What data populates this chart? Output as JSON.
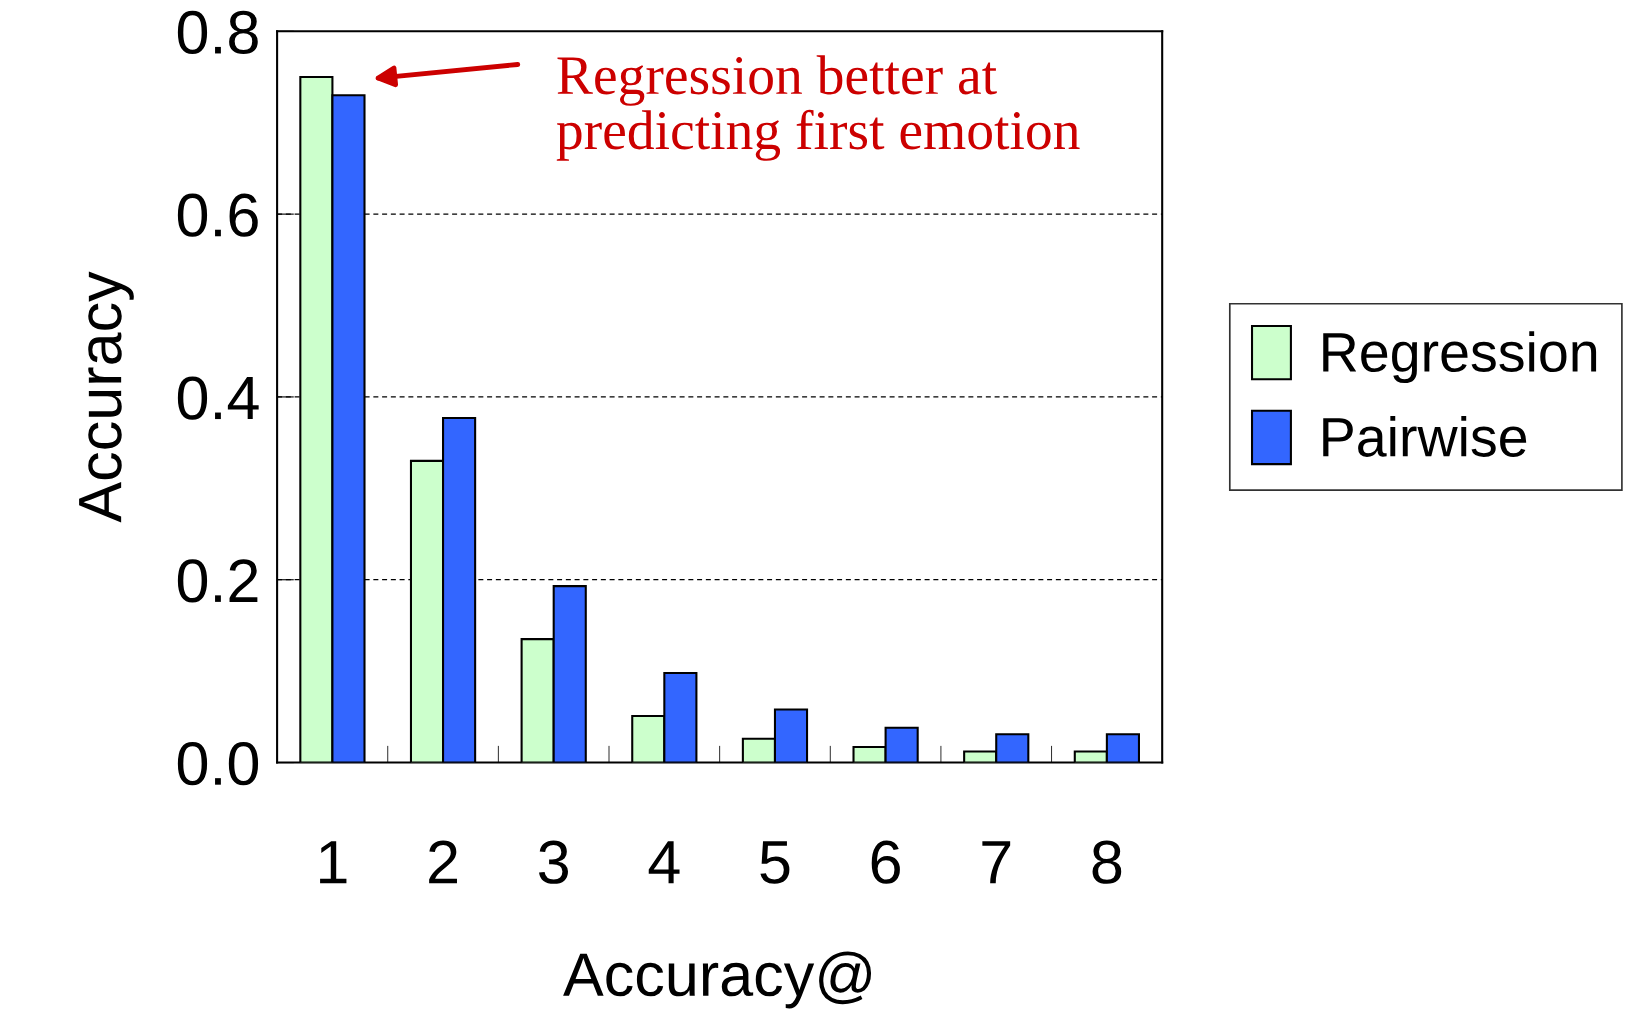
{
  "chart_data": {
    "type": "bar",
    "xlabel": "Accuracy@",
    "ylabel": "Accuracy",
    "categories": [
      "1",
      "2",
      "3",
      "4",
      "5",
      "6",
      "7",
      "8"
    ],
    "series": [
      {
        "name": "Regression",
        "color": "#ccffcc",
        "values": [
          0.75,
          0.33,
          0.135,
          0.051,
          0.026,
          0.017,
          0.012,
          0.012
        ]
      },
      {
        "name": "Pairwise",
        "color": "#3366ff",
        "values": [
          0.73,
          0.377,
          0.193,
          0.098,
          0.058,
          0.038,
          0.031,
          0.031
        ]
      }
    ],
    "ylim": [
      0,
      0.8
    ],
    "yticks": [
      {
        "value": 0,
        "label": "0.0"
      },
      0.2,
      0.4,
      0.6,
      0.8
    ],
    "grid": "y",
    "legend": "right",
    "annotations": [
      "Regression better at\npredicting first emotion"
    ]
  }
}
